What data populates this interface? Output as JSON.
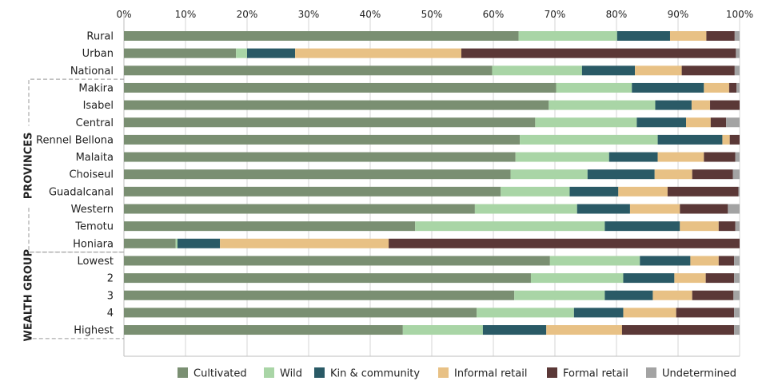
{
  "chart_data": {
    "type": "bar",
    "orientation": "horizontal",
    "stacked": true,
    "xlim": [
      0,
      100
    ],
    "x_ticks": [
      "0%",
      "10%",
      "20%",
      "30%",
      "40%",
      "50%",
      "60%",
      "70%",
      "80%",
      "90%",
      "100%"
    ],
    "grid": true,
    "legend_position": "bottom",
    "groups": [
      {
        "label": "PROVINCES",
        "first": "Makira",
        "last": "Honiara"
      },
      {
        "label": "WEALTH GROUP",
        "first": "Lowest",
        "last": "Highest"
      }
    ],
    "categories": [
      "Rural",
      "Urban",
      "National",
      "Makira",
      "Isabel",
      "Central",
      "Rennel Bellona",
      "Malaita",
      "Choiseul",
      "Guadalcanal",
      "Western",
      "Temotu",
      "Honiara",
      "Lowest",
      "2",
      "3",
      "4",
      "Highest"
    ],
    "series": [
      {
        "name": "Cultivated",
        "color": "#7a8f72",
        "values": [
          64.1,
          18.2,
          59.8,
          70.2,
          69.0,
          66.8,
          64.3,
          63.6,
          62.8,
          61.2,
          57.0,
          47.3,
          8.4,
          69.2,
          66.1,
          63.4,
          57.3,
          45.3
        ]
      },
      {
        "name": "Wild",
        "color": "#a9d5a6",
        "values": [
          16.0,
          1.8,
          14.6,
          12.3,
          17.3,
          16.5,
          22.4,
          15.2,
          12.5,
          11.2,
          16.6,
          30.8,
          0.3,
          14.6,
          15.0,
          14.7,
          15.8,
          13.0
        ]
      },
      {
        "name": "Kin & community",
        "color": "#2a5a66",
        "values": [
          8.6,
          7.8,
          8.6,
          11.7,
          5.9,
          8.0,
          10.5,
          7.9,
          10.9,
          7.9,
          8.6,
          12.2,
          6.9,
          8.2,
          8.3,
          7.8,
          8.0,
          10.3
        ]
      },
      {
        "name": "Informal retail",
        "color": "#e8c185",
        "values": [
          5.9,
          27.0,
          7.6,
          4.1,
          3.0,
          4.0,
          1.2,
          7.5,
          6.1,
          8.0,
          8.1,
          6.3,
          27.4,
          4.6,
          5.1,
          6.4,
          8.6,
          12.3
        ]
      },
      {
        "name": "Formal retail",
        "color": "#5b3837",
        "values": [
          4.6,
          44.6,
          8.6,
          1.2,
          4.8,
          2.5,
          1.6,
          5.1,
          6.6,
          11.5,
          7.8,
          2.7,
          57.0,
          2.5,
          4.6,
          6.7,
          9.4,
          18.2
        ]
      },
      {
        "name": "Undetermined",
        "color": "#a3a3a3",
        "values": [
          0.8,
          0.6,
          0.8,
          0.5,
          0.0,
          2.2,
          0.0,
          0.7,
          1.1,
          0.2,
          1.9,
          0.7,
          0.0,
          0.9,
          0.9,
          1.0,
          0.9,
          0.9
        ]
      }
    ]
  }
}
